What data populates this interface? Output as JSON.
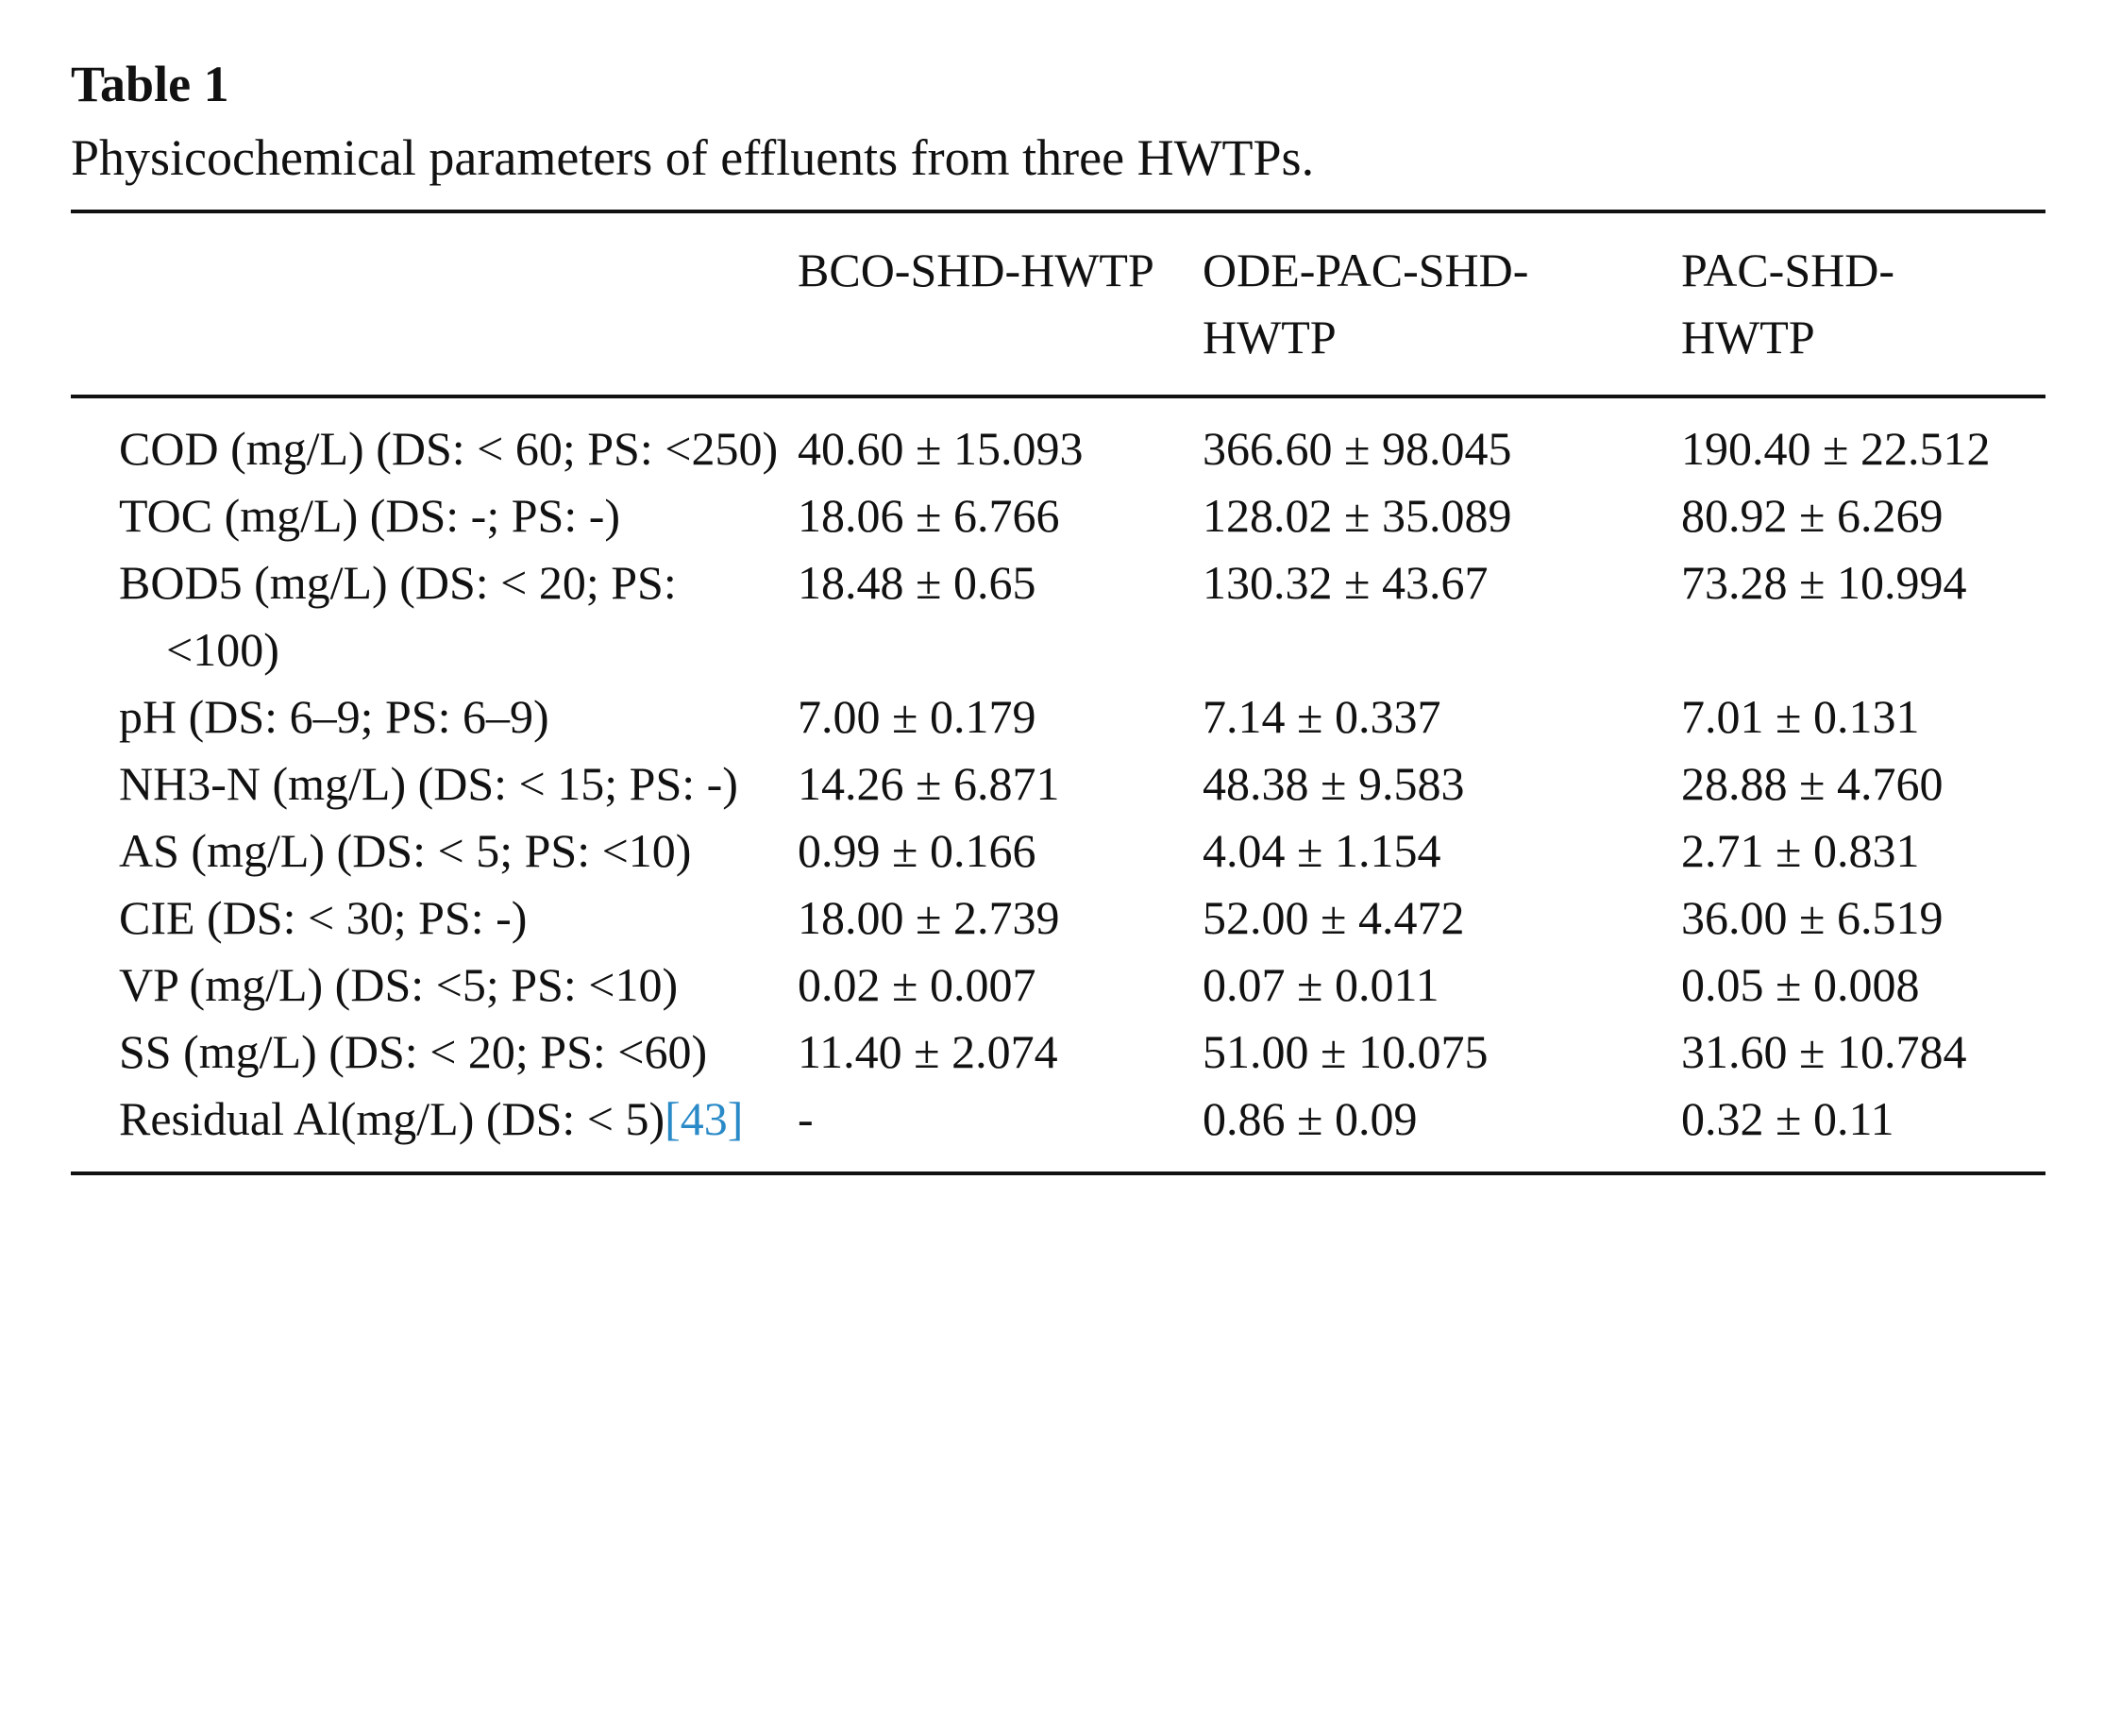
{
  "caption": {
    "label": "Table 1",
    "title": "Physicochemical parameters of effluents from three HWTPs."
  },
  "table": {
    "header": [
      "",
      "BCO-SHD-HWTP",
      "ODE-PAC-SHD-HWTP",
      "PAC-SHD-HWTP"
    ],
    "rows": [
      [
        "COD (mg/L) (DS: < 60; PS: <250)",
        "40.60 ± 15.093",
        "366.60 ± 98.045",
        "190.40 ± 22.512"
      ],
      [
        "TOC (mg/L) (DS: -; PS: -)",
        "18.06 ± 6.766",
        "128.02 ± 35.089",
        "80.92 ± 6.269"
      ],
      [
        "BOD5 (mg/L) (DS: < 20; PS: <100)",
        "18.48 ± 0.65",
        "130.32 ± 43.67",
        "73.28 ± 10.994"
      ],
      [
        "pH (DS: 6–9; PS: 6–9)",
        "7.00 ± 0.179",
        "7.14 ± 0.337",
        "7.01 ± 0.131"
      ],
      [
        "NH3-N (mg/L) (DS: < 15; PS: -)",
        "14.26 ± 6.871",
        "48.38 ± 9.583",
        "28.88 ± 4.760"
      ],
      [
        "AS (mg/L) (DS: < 5; PS: <10)",
        "0.99 ± 0.166",
        "4.04 ± 1.154",
        "2.71 ± 0.831"
      ],
      [
        "CIE (DS: < 30; PS: -)",
        "18.00 ± 2.739",
        "52.00 ± 4.472",
        "36.00 ± 6.519"
      ],
      [
        "VP (mg/L) (DS: <5; PS: <10)",
        "0.02 ± 0.007",
        "0.07 ± 0.011",
        "0.05 ± 0.008"
      ],
      [
        "SS (mg/L) (DS: < 20; PS: <60)",
        "11.40 ± 2.074",
        "51.00 ± 10.075",
        "31.60 ± 10.784"
      ],
      [
        "Residual Al(mg/L) (DS: < 5)",
        "-",
        "0.86 ± 0.09",
        "0.32 ± 0.11"
      ]
    ],
    "reference": "[43]"
  }
}
